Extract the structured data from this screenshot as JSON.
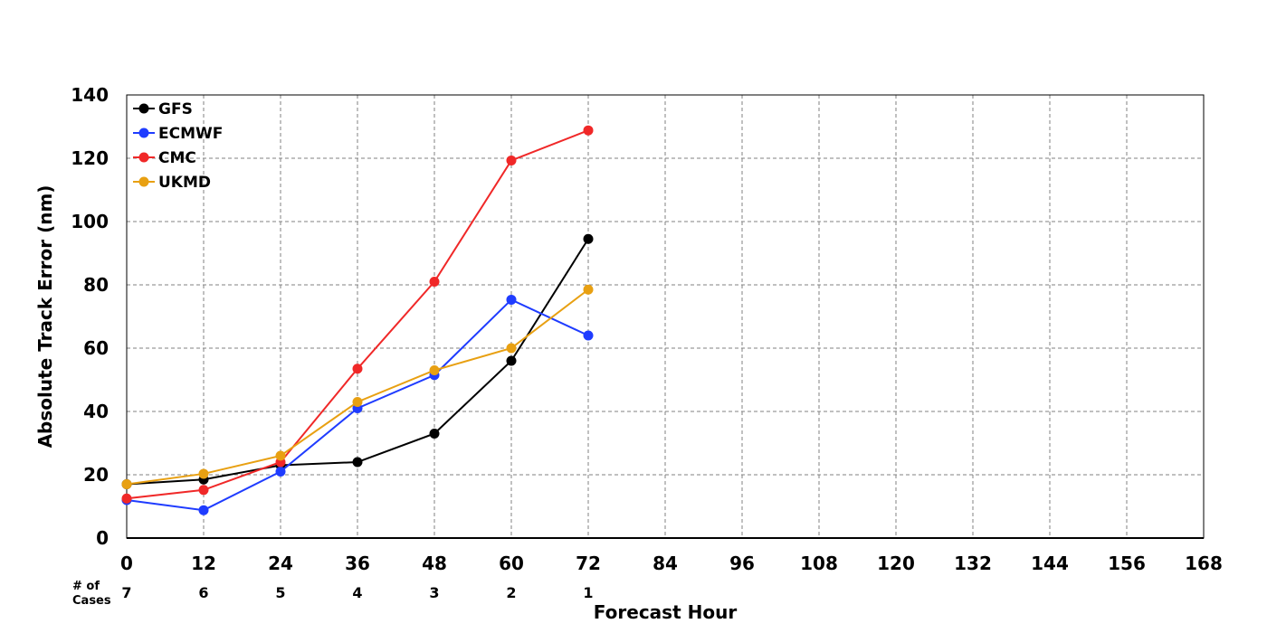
{
  "chart_data": {
    "type": "line",
    "title": "",
    "xlabel": "Forecast Hour",
    "ylabel": "Absolute Track Error (nm)",
    "xlim": [
      0,
      168
    ],
    "ylim": [
      0,
      140
    ],
    "x_ticks": [
      0,
      12,
      24,
      36,
      48,
      60,
      72,
      84,
      96,
      108,
      120,
      132,
      144,
      156,
      168
    ],
    "y_ticks": [
      0,
      20,
      40,
      60,
      80,
      100,
      120,
      140
    ],
    "grid": true,
    "legend_position": "top-left",
    "x": [
      0,
      12,
      24,
      36,
      48,
      60,
      72
    ],
    "series": [
      {
        "name": "GFS",
        "color": "#000000",
        "values": [
          17,
          18.5,
          23,
          24,
          33,
          56,
          94.5
        ]
      },
      {
        "name": "ECMWF",
        "color": "#1f3cff",
        "values": [
          12,
          8.8,
          21,
          41,
          51.5,
          75.3,
          64
        ]
      },
      {
        "name": "CMC",
        "color": "#f02828",
        "values": [
          12.5,
          15.2,
          24,
          53.5,
          81,
          119.3,
          128.8
        ]
      },
      {
        "name": "UKMD",
        "color": "#e8a012",
        "values": [
          17,
          20.3,
          26,
          43,
          53,
          60,
          78.5
        ]
      }
    ],
    "cases": {
      "label_line1": "# of",
      "label_line2": "Cases",
      "values": [
        "7",
        "6",
        "5",
        "4",
        "3",
        "2",
        "1"
      ]
    }
  }
}
